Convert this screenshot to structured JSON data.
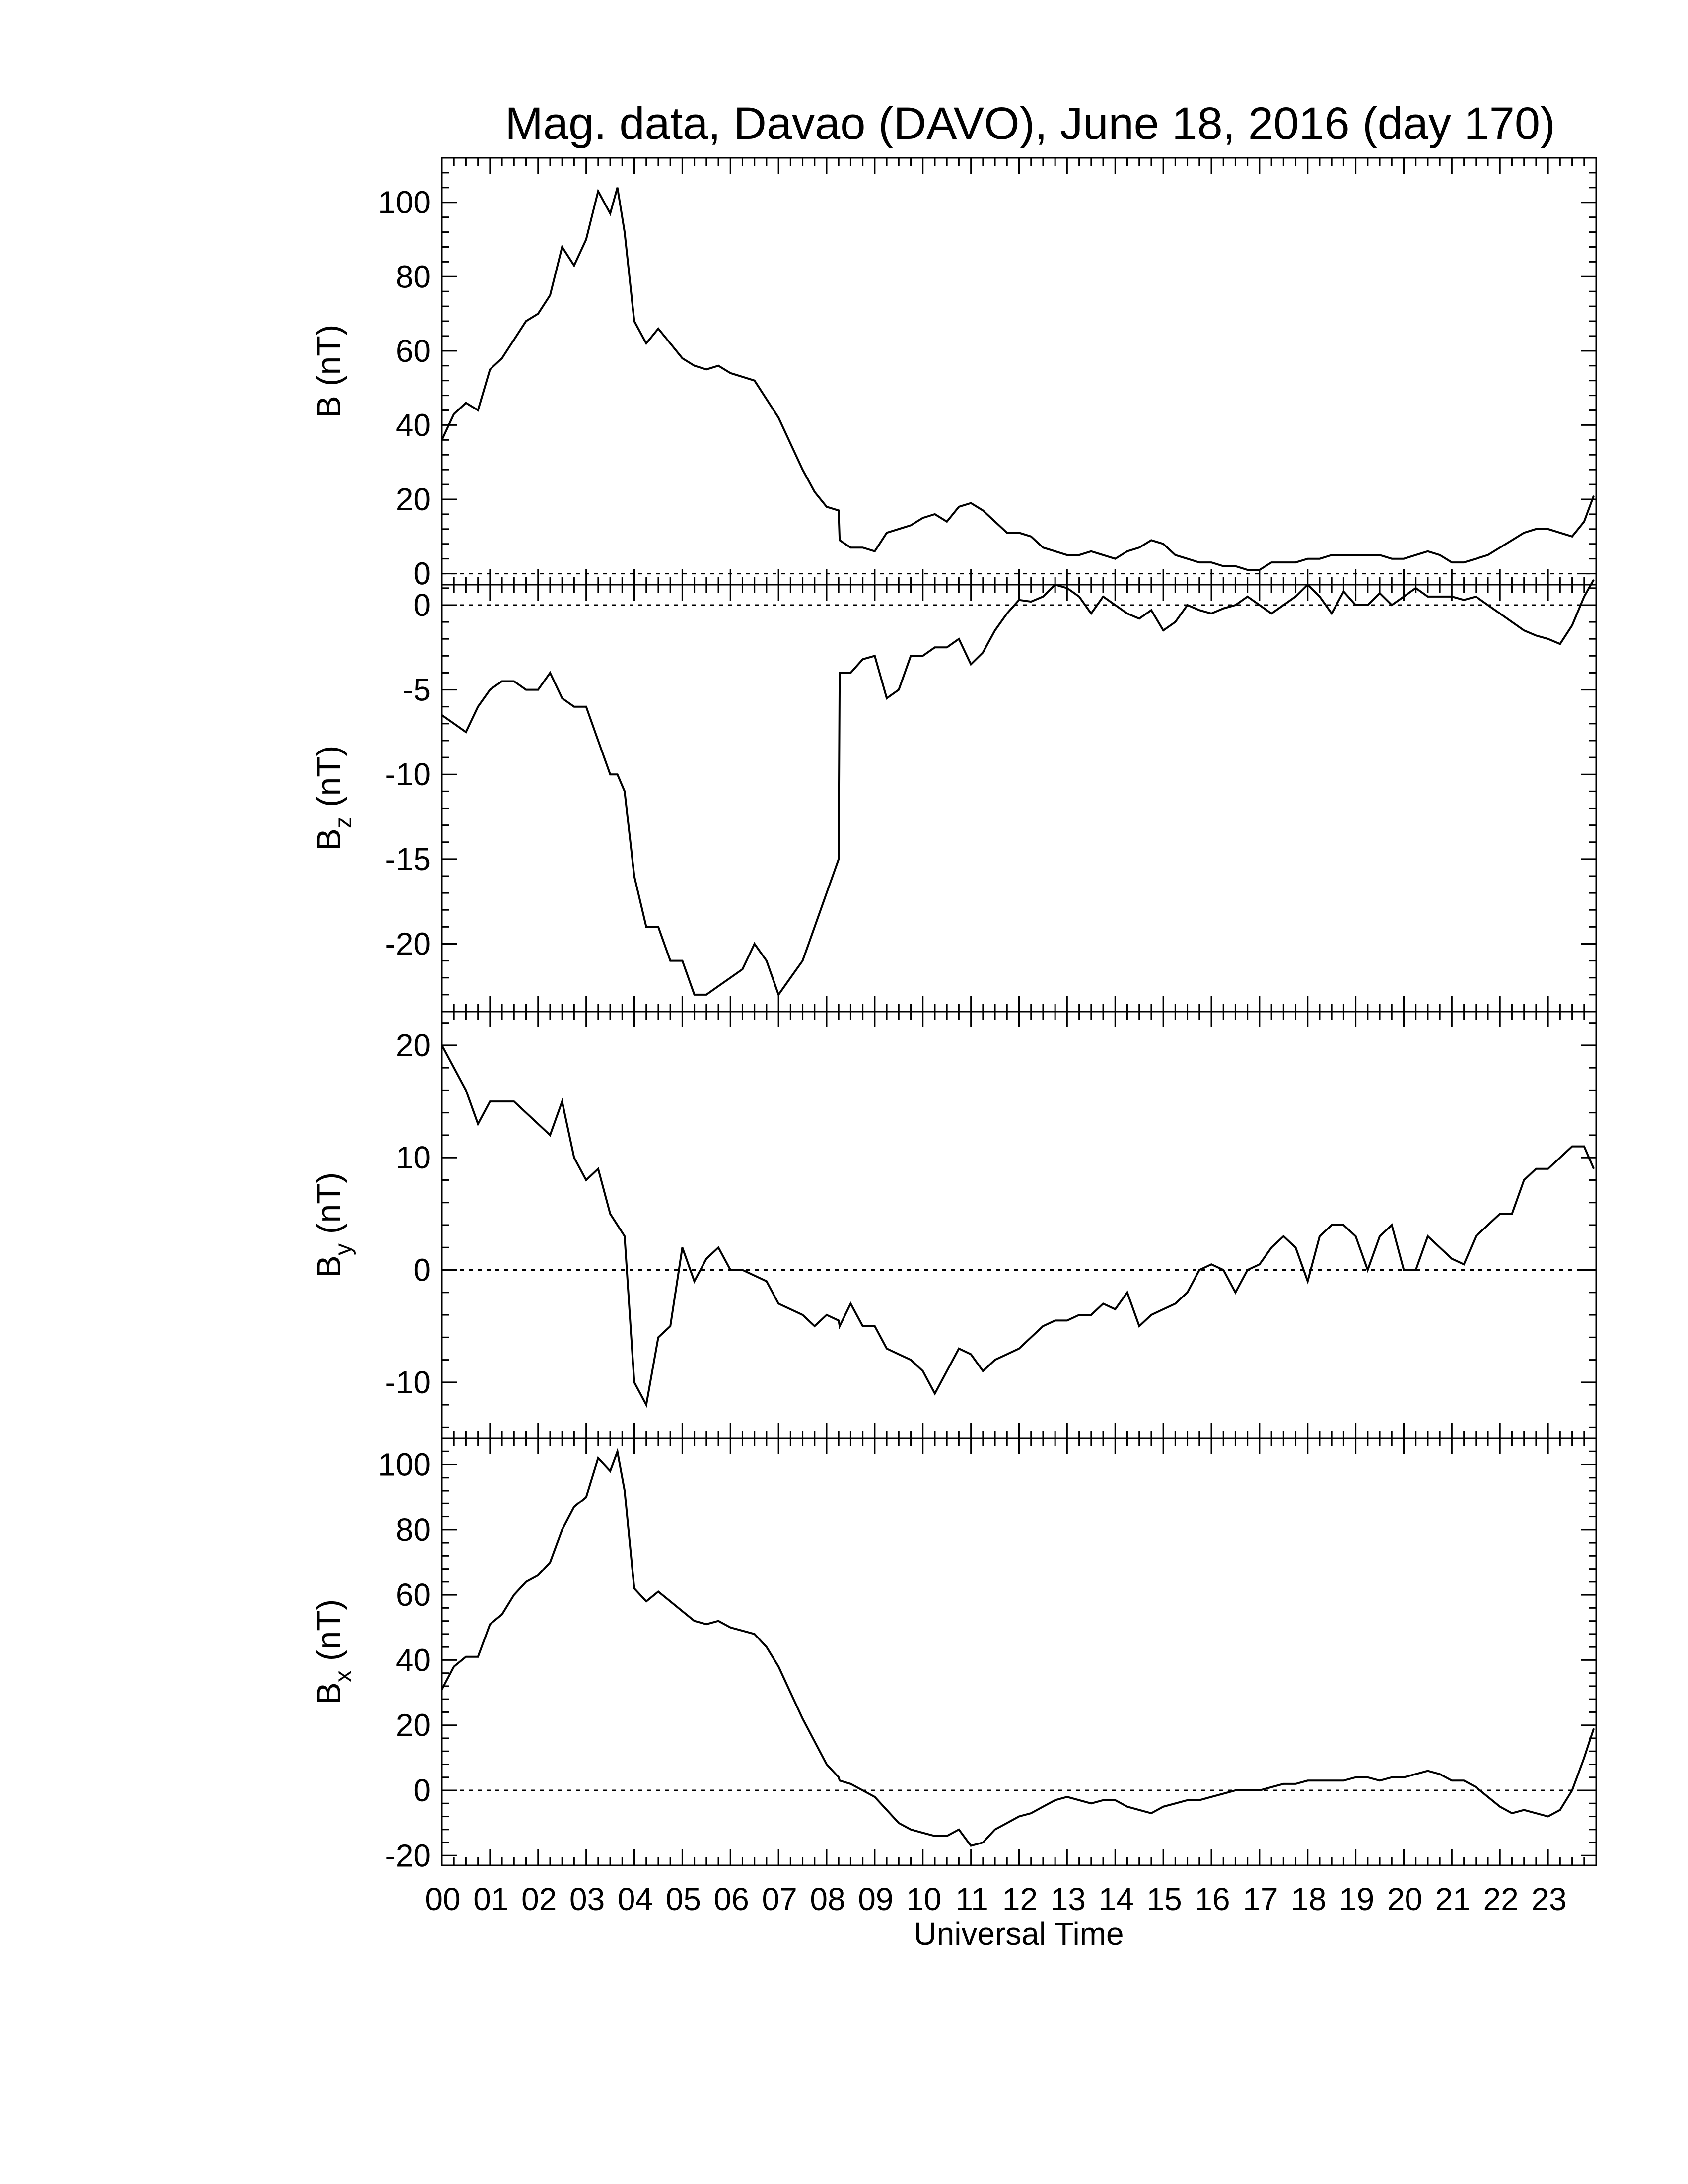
{
  "chart_data": {
    "title": "Mag. data, Davao (DAVO), June 18, 2016 (day 170)",
    "xlabel": "Universal Time",
    "type": "line",
    "x_unit": "hours UT",
    "xlim": [
      0,
      24
    ],
    "x_tick_labels": [
      "00",
      "01",
      "02",
      "03",
      "04",
      "05",
      "06",
      "07",
      "08",
      "09",
      "10",
      "11",
      "12",
      "13",
      "14",
      "15",
      "16",
      "17",
      "18",
      "19",
      "20",
      "21",
      "22",
      "23"
    ],
    "zero_line": "dotted",
    "line_color": "#000000",
    "panels": [
      {
        "ylabel": "B (nT)",
        "ylabel_base": "B",
        "ylabel_sub": "",
        "ylabel_unit": " (nT)",
        "ylim": [
          -3,
          112
        ],
        "yticks": [
          0,
          20,
          40,
          60,
          80,
          100
        ],
        "ytick_labels": [
          "0",
          "20",
          "40",
          "60",
          "80",
          "100"
        ],
        "x": [
          0,
          0.25,
          0.5,
          0.75,
          1.0,
          1.25,
          1.5,
          1.75,
          2.0,
          2.25,
          2.5,
          2.75,
          3.0,
          3.25,
          3.5,
          3.65,
          3.8,
          4.0,
          4.25,
          4.5,
          4.75,
          5.0,
          5.25,
          5.5,
          5.75,
          6.0,
          6.25,
          6.5,
          6.75,
          7.0,
          7.25,
          7.5,
          7.75,
          8.0,
          8.25,
          8.27,
          8.5,
          8.75,
          9.0,
          9.25,
          9.5,
          9.75,
          10.0,
          10.25,
          10.5,
          10.75,
          11.0,
          11.25,
          11.5,
          11.75,
          12.0,
          12.25,
          12.5,
          12.75,
          13.0,
          13.25,
          13.5,
          13.75,
          14.0,
          14.25,
          14.5,
          14.75,
          15.0,
          15.25,
          15.5,
          15.75,
          16.0,
          16.25,
          16.5,
          16.75,
          17.0,
          17.25,
          17.5,
          17.75,
          18.0,
          18.25,
          18.5,
          18.75,
          19.0,
          19.25,
          19.5,
          19.75,
          20.0,
          20.25,
          20.5,
          20.75,
          21.0,
          21.25,
          21.5,
          21.75,
          22.0,
          22.25,
          22.5,
          22.75,
          23.0,
          23.25,
          23.5,
          23.75,
          23.95
        ],
        "y": [
          36,
          43,
          46,
          44,
          55,
          58,
          63,
          68,
          70,
          75,
          88,
          83,
          90,
          103,
          97,
          104,
          92,
          68,
          62,
          66,
          62,
          58,
          56,
          55,
          56,
          54,
          53,
          52,
          47,
          42,
          35,
          28,
          22,
          18,
          17,
          9,
          7,
          7,
          6,
          11,
          12,
          13,
          15,
          16,
          14,
          18,
          19,
          17,
          14,
          11,
          11,
          10,
          7,
          6,
          5,
          5,
          6,
          5,
          4,
          6,
          7,
          9,
          8,
          5,
          4,
          3,
          3,
          2,
          2,
          1,
          1,
          3,
          3,
          3,
          4,
          4,
          5,
          5,
          5,
          5,
          5,
          4,
          4,
          5,
          6,
          5,
          3,
          3,
          4,
          5,
          7,
          9,
          11,
          12,
          12,
          11,
          10,
          14,
          21
        ]
      },
      {
        "ylabel": "Bz (nT)",
        "ylabel_base": "B",
        "ylabel_sub": "z",
        "ylabel_unit": " (nT)",
        "ylim": [
          -24,
          1.2
        ],
        "yticks": [
          -20,
          -15,
          -10,
          -5,
          0
        ],
        "ytick_labels": [
          "-20",
          "-15",
          "-10",
          "-5",
          "0"
        ],
        "x": [
          0,
          0.25,
          0.5,
          0.75,
          1.0,
          1.25,
          1.5,
          1.75,
          2.0,
          2.25,
          2.5,
          2.75,
          3.0,
          3.25,
          3.5,
          3.65,
          3.8,
          4.0,
          4.25,
          4.5,
          4.75,
          5.0,
          5.25,
          5.5,
          5.75,
          6.0,
          6.25,
          6.5,
          6.75,
          7.0,
          7.25,
          7.5,
          7.75,
          8.0,
          8.25,
          8.27,
          8.5,
          8.75,
          9.0,
          9.25,
          9.5,
          9.75,
          10.0,
          10.25,
          10.5,
          10.75,
          11.0,
          11.25,
          11.5,
          11.75,
          12.0,
          12.25,
          12.5,
          12.75,
          13.0,
          13.25,
          13.5,
          13.75,
          14.0,
          14.25,
          14.5,
          14.75,
          15.0,
          15.25,
          15.5,
          15.75,
          16.0,
          16.25,
          16.5,
          16.75,
          17.0,
          17.25,
          17.5,
          17.75,
          18.0,
          18.25,
          18.5,
          18.75,
          19.0,
          19.25,
          19.5,
          19.75,
          20.0,
          20.25,
          20.5,
          20.75,
          21.0,
          21.25,
          21.5,
          21.75,
          22.0,
          22.25,
          22.5,
          22.75,
          23.0,
          23.25,
          23.5,
          23.75,
          23.95
        ],
        "y": [
          -6.5,
          -7,
          -7.5,
          -6,
          -5,
          -4.5,
          -4.5,
          -5,
          -5,
          -4,
          -5.5,
          -6,
          -6,
          -8,
          -10,
          -10,
          -11,
          -16,
          -19,
          -19,
          -21,
          -21,
          -23,
          -23,
          -22.5,
          -22,
          -21.5,
          -20,
          -21,
          -23,
          -22,
          -21,
          -19,
          -17,
          -15,
          -4,
          -4,
          -3.2,
          -3,
          -5.5,
          -5,
          -3,
          -3,
          -2.5,
          -2.5,
          -2,
          -3.5,
          -2.8,
          -1.5,
          -0.5,
          0.3,
          0.2,
          0.5,
          1.2,
          1,
          0.5,
          -0.5,
          0.5,
          0,
          -0.5,
          -0.8,
          -0.3,
          -1.5,
          -1,
          0,
          -0.3,
          -0.5,
          -0.2,
          0,
          0.5,
          0,
          -0.5,
          0,
          0.5,
          1.2,
          0.5,
          -0.5,
          0.8,
          0,
          0,
          0.7,
          0,
          0.5,
          1,
          0.5,
          0.5,
          0.5,
          0.3,
          0.5,
          0,
          -0.5,
          -1,
          -1.5,
          -1.8,
          -2,
          -2.3,
          -1.2,
          0.5,
          1.5
        ]
      },
      {
        "ylabel": "By (nT)",
        "ylabel_base": "B",
        "ylabel_sub": "y",
        "ylabel_unit": " (nT)",
        "ylim": [
          -15,
          23
        ],
        "yticks": [
          -10,
          0,
          10,
          20
        ],
        "ytick_labels": [
          "-10",
          "0",
          "10",
          "20"
        ],
        "x": [
          0,
          0.25,
          0.5,
          0.75,
          1.0,
          1.25,
          1.5,
          1.75,
          2.0,
          2.25,
          2.5,
          2.75,
          3.0,
          3.25,
          3.5,
          3.65,
          3.8,
          4.0,
          4.25,
          4.5,
          4.75,
          5.0,
          5.25,
          5.5,
          5.75,
          6.0,
          6.25,
          6.5,
          6.75,
          7.0,
          7.25,
          7.5,
          7.75,
          8.0,
          8.25,
          8.27,
          8.5,
          8.75,
          9.0,
          9.25,
          9.5,
          9.75,
          10.0,
          10.25,
          10.5,
          10.75,
          11.0,
          11.25,
          11.5,
          11.75,
          12.0,
          12.25,
          12.5,
          12.75,
          13.0,
          13.25,
          13.5,
          13.75,
          14.0,
          14.25,
          14.5,
          14.75,
          15.0,
          15.25,
          15.5,
          15.75,
          16.0,
          16.25,
          16.5,
          16.75,
          17.0,
          17.25,
          17.5,
          17.75,
          18.0,
          18.25,
          18.5,
          18.75,
          19.0,
          19.25,
          19.5,
          19.75,
          20.0,
          20.25,
          20.5,
          20.75,
          21.0,
          21.25,
          21.5,
          21.75,
          22.0,
          22.25,
          22.5,
          22.75,
          23.0,
          23.25,
          23.5,
          23.75,
          23.95
        ],
        "y": [
          20,
          18,
          16,
          13,
          15,
          15,
          15,
          14,
          13,
          12,
          15,
          10,
          8,
          9,
          5,
          4,
          3,
          -10,
          -12,
          -6,
          -5,
          2,
          -1,
          1,
          2,
          0,
          0,
          -0.5,
          -1,
          -3,
          -3.5,
          -4,
          -5,
          -4,
          -4.5,
          -5,
          -3,
          -5,
          -5,
          -7,
          -7.5,
          -8,
          -9,
          -11,
          -9,
          -7,
          -7.5,
          -9,
          -8,
          -7.5,
          -7,
          -6,
          -5,
          -4.5,
          -4.5,
          -4,
          -4,
          -3,
          -3.5,
          -2,
          -5,
          -4,
          -3.5,
          -3,
          -2,
          0,
          0.5,
          0,
          -2,
          0,
          0.5,
          2,
          3,
          2,
          -1,
          3,
          4,
          4,
          3,
          0,
          3,
          4,
          0,
          0,
          3,
          2,
          1,
          0.5,
          3,
          4,
          5,
          5,
          8,
          9,
          9,
          10,
          11,
          11,
          9
        ]
      },
      {
        "ylabel": "Bx (nT)",
        "ylabel_base": "B",
        "ylabel_sub": "x",
        "ylabel_unit": " (nT)",
        "ylim": [
          -23,
          108
        ],
        "yticks": [
          -20,
          0,
          20,
          40,
          60,
          80,
          100
        ],
        "ytick_labels": [
          "-20",
          "0",
          "20",
          "40",
          "60",
          "80",
          "100"
        ],
        "x": [
          0,
          0.25,
          0.5,
          0.75,
          1.0,
          1.25,
          1.5,
          1.75,
          2.0,
          2.25,
          2.5,
          2.75,
          3.0,
          3.25,
          3.5,
          3.65,
          3.8,
          4.0,
          4.25,
          4.5,
          4.75,
          5.0,
          5.25,
          5.5,
          5.75,
          6.0,
          6.25,
          6.5,
          6.75,
          7.0,
          7.25,
          7.5,
          7.75,
          8.0,
          8.25,
          8.27,
          8.5,
          8.75,
          9.0,
          9.25,
          9.5,
          9.75,
          10.0,
          10.25,
          10.5,
          10.75,
          11.0,
          11.25,
          11.5,
          11.75,
          12.0,
          12.25,
          12.5,
          12.75,
          13.0,
          13.25,
          13.5,
          13.75,
          14.0,
          14.25,
          14.5,
          14.75,
          15.0,
          15.25,
          15.5,
          15.75,
          16.0,
          16.25,
          16.5,
          16.75,
          17.0,
          17.25,
          17.5,
          17.75,
          18.0,
          18.25,
          18.5,
          18.75,
          19.0,
          19.25,
          19.5,
          19.75,
          20.0,
          20.25,
          20.5,
          20.75,
          21.0,
          21.25,
          21.5,
          21.75,
          22.0,
          22.25,
          22.5,
          22.75,
          23.0,
          23.25,
          23.5,
          23.75,
          23.95
        ],
        "y": [
          31,
          38,
          41,
          41,
          51,
          54,
          60,
          64,
          66,
          70,
          80,
          87,
          90,
          102,
          98,
          104,
          92,
          62,
          58,
          61,
          58,
          55,
          52,
          51,
          52,
          50,
          49,
          48,
          44,
          38,
          30,
          22,
          15,
          8,
          4,
          3,
          2,
          0,
          -2,
          -6,
          -10,
          -12,
          -13,
          -14,
          -14,
          -12,
          -17,
          -16,
          -12,
          -10,
          -8,
          -7,
          -5,
          -3,
          -2,
          -3,
          -4,
          -3,
          -3,
          -5,
          -6,
          -7,
          -5,
          -4,
          -3,
          -3,
          -2,
          -1,
          0,
          0,
          0,
          1,
          2,
          2,
          3,
          3,
          3,
          3,
          4,
          4,
          3,
          4,
          4,
          5,
          6,
          5,
          3,
          3,
          1,
          -2,
          -5,
          -7,
          -6,
          -7,
          -8,
          -6,
          0,
          10,
          19
        ]
      }
    ]
  }
}
